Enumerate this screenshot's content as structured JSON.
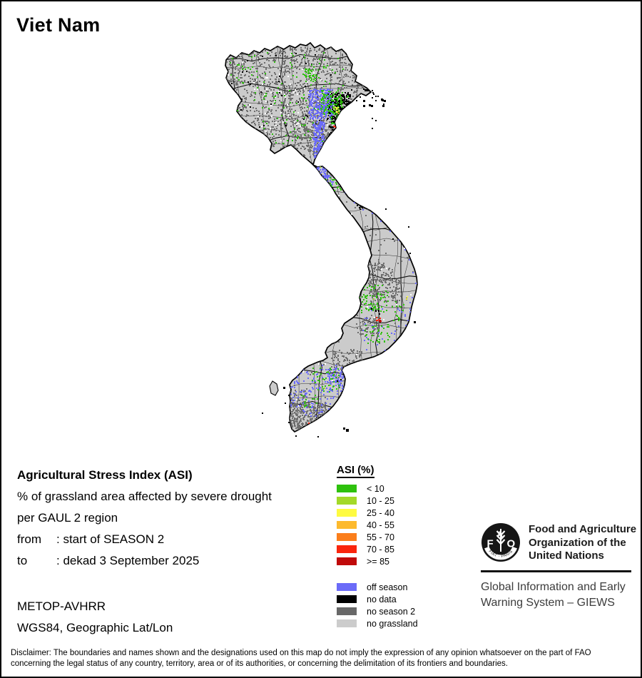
{
  "page": {
    "title": "Viet Nam"
  },
  "info_block": {
    "heading": "Agricultural Stress Index (ASI)",
    "description_line1": "% of grassland area affected by severe drought",
    "description_line2": "per GAUL 2 region",
    "from_label": "from",
    "from_value": ": start of SEASON 2",
    "to_label": "to",
    "to_value": ": dekad 3 September 2025",
    "sensor": "METOP-AVHRR",
    "projection": "WGS84, Geographic Lat/Lon"
  },
  "legend": {
    "title": "ASI (%)",
    "asi_classes": [
      {
        "label": "< 10",
        "color": "#2ec10d"
      },
      {
        "label": "10 - 25",
        "color": "#a3d929"
      },
      {
        "label": "25 - 40",
        "color": "#fefb41"
      },
      {
        "label": "40 - 55",
        "color": "#fdba2d"
      },
      {
        "label": "55 - 70",
        "color": "#fb7e1b"
      },
      {
        "label": "70 - 85",
        "color": "#fa250d"
      },
      {
        "label": ">= 85",
        "color": "#c00a0a"
      }
    ],
    "season_classes": [
      {
        "label": "off season",
        "color": "#6b6bf8"
      },
      {
        "label": "no data",
        "color": "#000000"
      },
      {
        "label": "no season 2",
        "color": "#686868"
      },
      {
        "label": "no grassland",
        "color": "#cccccc"
      }
    ]
  },
  "map": {
    "land_color": "#cbcbcb",
    "boundary_color": "#000000"
  },
  "fao": {
    "logo_letter_f": "F",
    "logo_letter_a": "A",
    "logo_letter_o": "O",
    "logo_motto": "FIAT · PANIS",
    "org_line1": "Food and Agriculture",
    "org_line2": "Organization of the",
    "org_line3": "United Nations",
    "giews_line1": "Global Information and Early",
    "giews_line2": "Warning System – GIEWS"
  },
  "disclaimer": {
    "line1": "Disclaimer: The boundaries and names shown and the designations used on this map do not imply the expression of any opinion whatsoever on the part of FAO",
    "line2": "concerning the legal status of any country, territory, area or of its authorities, or concerning the delimitation of its frontiers and boundaries."
  }
}
